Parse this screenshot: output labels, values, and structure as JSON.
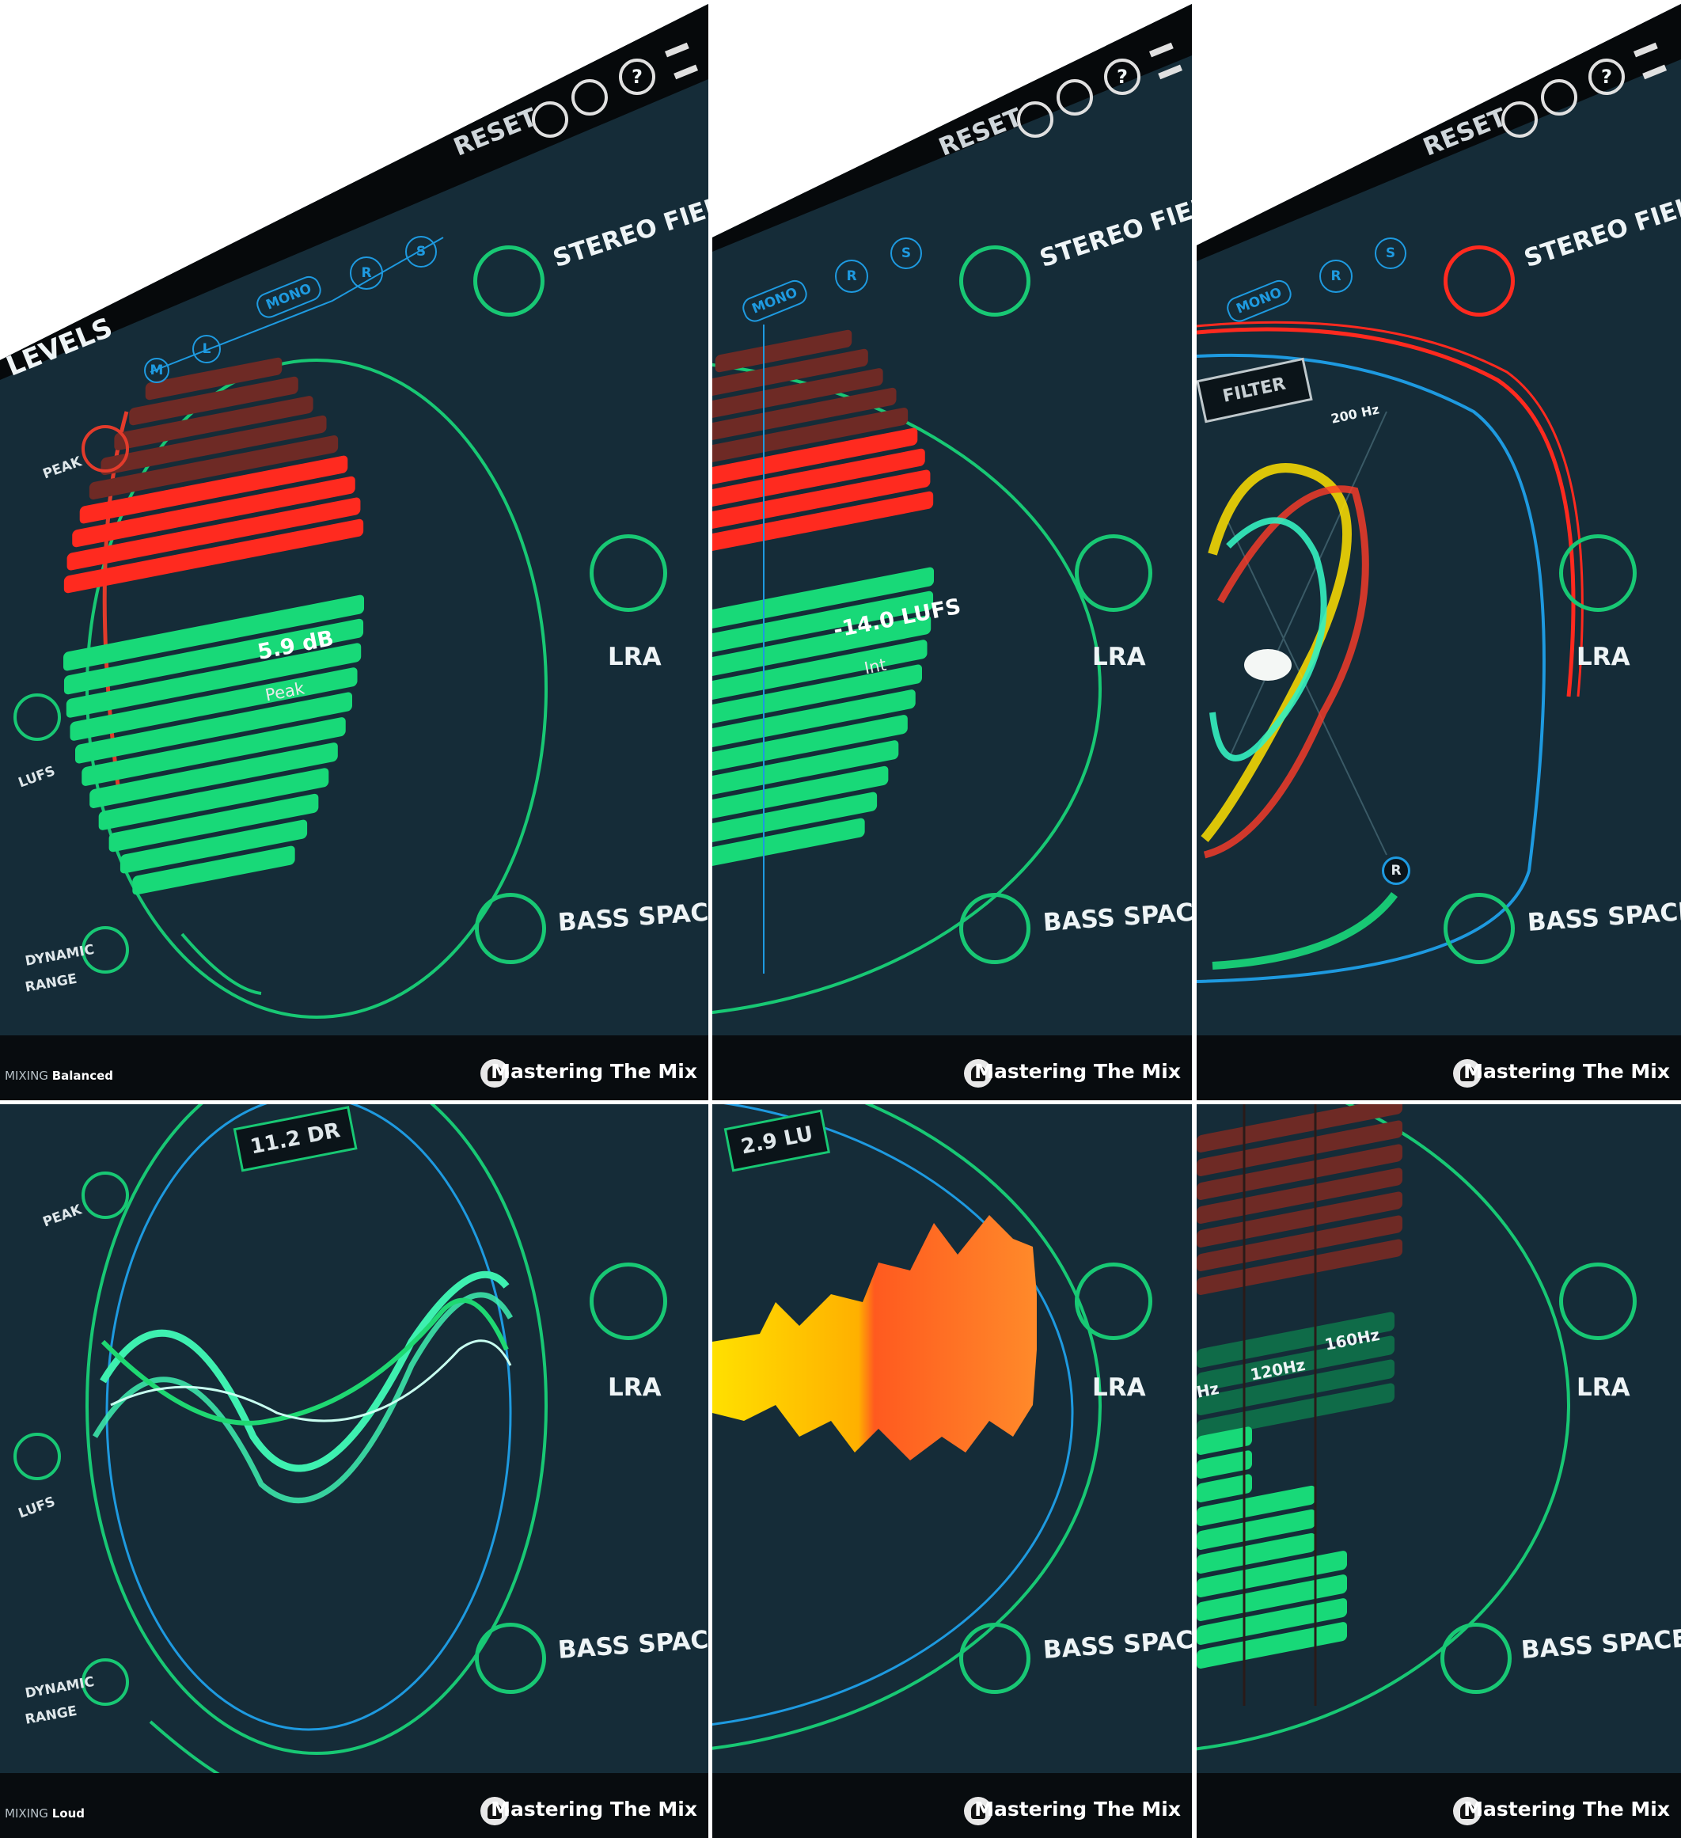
{
  "toolbar": {
    "reset_label": "RESET",
    "settings_icon": "gear-icon",
    "info_icon": "info-icon",
    "help_label": "?",
    "menu_icon": "menu-icon"
  },
  "sections": {
    "levels": "LEVELS",
    "stereo_field": "STEREO FIELD",
    "lra": "LRA",
    "bass_space": "BASS SPACE",
    "peak": "PEAK",
    "lufs": "LUFS",
    "dynamic_range_1": "DYNAMIC",
    "dynamic_range_2": "RANGE"
  },
  "channels": {
    "m": "M",
    "l": "L",
    "mono": "MONO",
    "r": "R",
    "s": "S"
  },
  "panels": [
    {
      "id": "peak",
      "readout": "5.9 dB",
      "sublabel": "Peak",
      "mode_prefix": "MIXING",
      "mode": "Balanced"
    },
    {
      "id": "lufs",
      "readout": "-14.0 LUFS",
      "sublabel": "Int"
    },
    {
      "id": "stereo",
      "filter_label": "FILTER",
      "freq_label": "200 Hz",
      "r_marker": "R"
    },
    {
      "id": "dr",
      "readout": "11.2 DR",
      "mode_prefix": "MIXING",
      "mode": "Loud"
    },
    {
      "id": "lra",
      "readout": "2.9 LU"
    },
    {
      "id": "bass",
      "bands": [
        "Hz",
        "120Hz",
        "160Hz"
      ]
    }
  ],
  "brand": "Mastering The Mix",
  "colors": {
    "background": "#152c38",
    "accent_green": "#18d978",
    "peak_red": "#ff2a1f",
    "dark_red": "#6e2a25",
    "blue": "#1e9ae0"
  }
}
